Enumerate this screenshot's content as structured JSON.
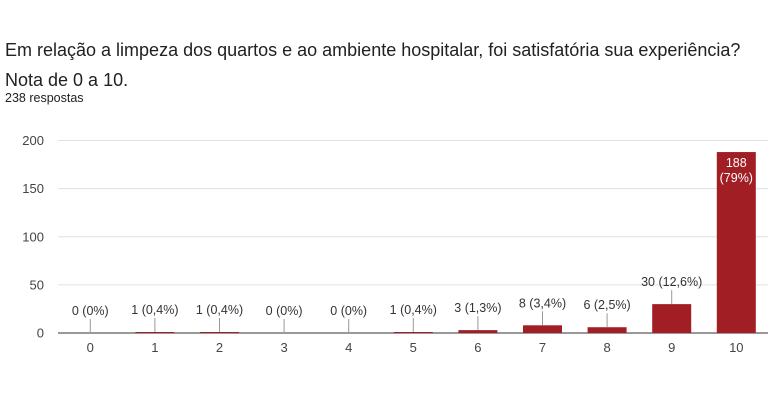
{
  "question": "Em relação a limpeza dos quartos e ao ambiente hospitalar, foi satisfatória sua experiência? Nota de 0 a 10.",
  "responses_label": "238 respostas",
  "bar_color": "#a21e25",
  "chart_data": {
    "type": "bar",
    "title": "Em relação a limpeza dos quartos e ao ambiente hospitalar, foi satisfatória sua experiência? Nota de 0 a 10.",
    "xlabel": "",
    "ylabel": "",
    "categories": [
      "0",
      "1",
      "2",
      "3",
      "4",
      "5",
      "6",
      "7",
      "8",
      "9",
      "10"
    ],
    "values": [
      0,
      1,
      1,
      0,
      0,
      1,
      3,
      8,
      6,
      30,
      188
    ],
    "data_labels": [
      "0 (0%)",
      "1 (0,4%)",
      "1 (0,4%)",
      "0 (0%)",
      "0 (0%)",
      "1 (0,4%)",
      "3 (1,3%)",
      "8 (3,4%)",
      "6 (2,5%)",
      "30 (12,6%)",
      "188 (79%)"
    ],
    "ylim": [
      0,
      200
    ],
    "yticks": [
      0,
      50,
      100,
      150,
      200
    ],
    "grid": true,
    "legend": "none"
  }
}
